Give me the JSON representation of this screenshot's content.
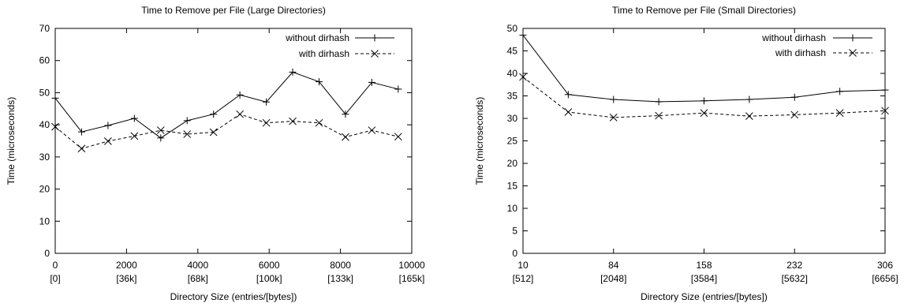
{
  "chart_data": [
    {
      "type": "line",
      "title": "Time to Remove per File (Large Directories)",
      "xlabel": "Directory Size (entries/[bytes])",
      "ylabel": "Time (microseconds)",
      "xlim": [
        0,
        10000
      ],
      "ylim": [
        0,
        70
      ],
      "grid": false,
      "legend_position": "top-right",
      "x_ticks": [
        {
          "value": 0,
          "label": "0",
          "sublabel": "[0]"
        },
        {
          "value": 2000,
          "label": "2000",
          "sublabel": "[36k]"
        },
        {
          "value": 4000,
          "label": "4000",
          "sublabel": "[68k]"
        },
        {
          "value": 6000,
          "label": "6000",
          "sublabel": "[100k]"
        },
        {
          "value": 8000,
          "label": "8000",
          "sublabel": "[133k]"
        },
        {
          "value": 10000,
          "label": "10000",
          "sublabel": "[165k]"
        }
      ],
      "y_ticks": [
        0,
        10,
        20,
        30,
        40,
        50,
        60,
        70
      ],
      "x": [
        0,
        740,
        1480,
        2220,
        2960,
        3700,
        4440,
        5180,
        5920,
        6660,
        7400,
        8140,
        8880,
        9620
      ],
      "series": [
        {
          "name": "without dirhash",
          "marker": "plus",
          "dash": "solid",
          "values": [
            48.3,
            37.8,
            39.8,
            42.0,
            35.9,
            41.3,
            43.3,
            49.3,
            47.1,
            56.4,
            53.4,
            43.3,
            53.2,
            51.1
          ]
        },
        {
          "name": "with dirhash",
          "marker": "cross",
          "dash": "dashed",
          "values": [
            39.4,
            32.6,
            34.9,
            36.5,
            38.3,
            37.1,
            37.7,
            43.3,
            40.6,
            41.1,
            40.6,
            36.2,
            38.3,
            36.3
          ]
        }
      ]
    },
    {
      "type": "line",
      "title": "Time to Remove per File (Small Directories)",
      "xlabel": "Directory Size (entries/[bytes])",
      "ylabel": "Time (microseconds)",
      "xlim": [
        10,
        306
      ],
      "ylim": [
        0,
        50
      ],
      "grid": false,
      "legend_position": "top-right",
      "x_ticks": [
        {
          "value": 10,
          "label": "10",
          "sublabel": "[512]"
        },
        {
          "value": 84,
          "label": "84",
          "sublabel": "[2048]"
        },
        {
          "value": 158,
          "label": "158",
          "sublabel": "[3584]"
        },
        {
          "value": 232,
          "label": "232",
          "sublabel": "[5632]"
        },
        {
          "value": 306,
          "label": "306",
          "sublabel": "[6656]"
        }
      ],
      "y_ticks": [
        0,
        5,
        10,
        15,
        20,
        25,
        30,
        35,
        40,
        45,
        50
      ],
      "x": [
        10,
        47,
        84,
        121,
        158,
        195,
        232,
        269,
        306
      ],
      "series": [
        {
          "name": "without dirhash",
          "marker": "plus",
          "dash": "solid",
          "values": [
            48.5,
            35.3,
            34.2,
            33.7,
            33.9,
            34.2,
            34.7,
            36.0,
            36.3
          ]
        },
        {
          "name": "with dirhash",
          "marker": "cross",
          "dash": "dashed",
          "values": [
            39.2,
            31.4,
            30.2,
            30.6,
            31.2,
            30.5,
            30.8,
            31.2,
            31.7
          ]
        }
      ]
    }
  ]
}
